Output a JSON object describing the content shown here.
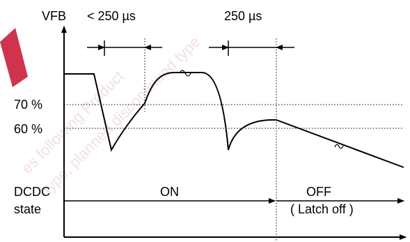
{
  "watermark": {
    "line1": "es following Product",
    "line2": "type, planned discontinued type"
  },
  "axes": {
    "y_label": "VFB",
    "y_tick_70": "70 %",
    "y_tick_60": "60 %"
  },
  "timing": {
    "left_label": "< 250 µs",
    "right_label": "250 µs"
  },
  "state": {
    "row_label_line1": "DCDC",
    "row_label_line2": "state",
    "on_label": "ON",
    "off_label": "OFF",
    "off_sublabel": "( Latch off )"
  },
  "colors": {
    "line": "#000000",
    "watermark": "#e8c0c4",
    "brand_red": "#c8102e"
  }
}
